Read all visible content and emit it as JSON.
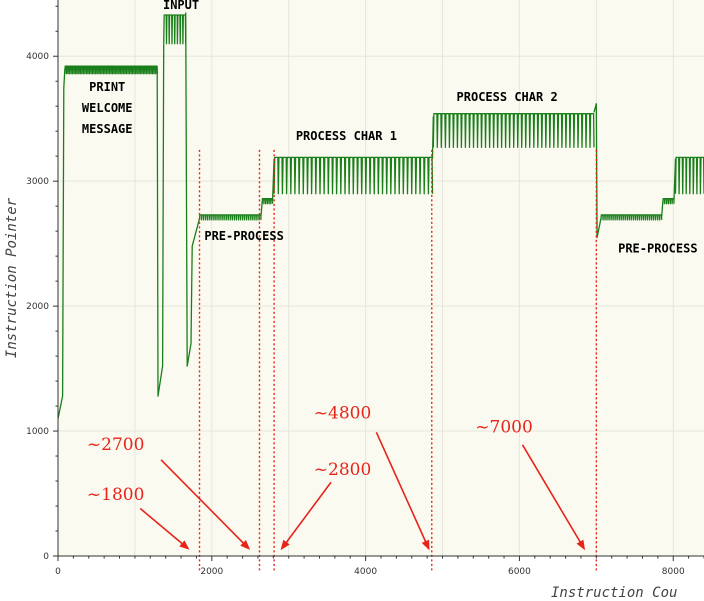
{
  "chart_data": {
    "type": "line",
    "xlabel": "Instruction Cou",
    "ylabel": "Instruction Pointer",
    "xlim": [
      0,
      8400
    ],
    "ylim": [
      0,
      4450
    ],
    "xticks": [
      0,
      2000,
      4000,
      6000,
      8000
    ],
    "yticks": [
      0,
      1000,
      2000,
      3000,
      4000
    ],
    "grid": true,
    "series_color": "#1a7f1a",
    "background": "#fafaf0",
    "gridline_color": "#e6e6dc",
    "segments": [
      {
        "kind": "plain",
        "points": [
          [
            0,
            1100
          ],
          [
            60,
            1280
          ],
          [
            75,
            3750
          ],
          [
            90,
            3900
          ]
        ]
      },
      {
        "kind": "band",
        "x_start": 90,
        "x_end": 1290,
        "low": 3860,
        "high": 3920,
        "teeth": 60
      },
      {
        "kind": "plain",
        "points": [
          [
            1290,
            3900
          ],
          [
            1300,
            1280
          ],
          [
            1360,
            1520
          ],
          [
            1375,
            4100
          ]
        ]
      },
      {
        "kind": "band",
        "x_start": 1375,
        "x_end": 1660,
        "low": 4100,
        "high": 4330,
        "teeth": 8
      },
      {
        "kind": "plain",
        "points": [
          [
            1660,
            4350
          ],
          [
            1680,
            1520
          ],
          [
            1730,
            1700
          ],
          [
            1745,
            2480
          ],
          [
            1840,
            2700
          ]
        ]
      },
      {
        "kind": "band",
        "x_start": 1840,
        "x_end": 2640,
        "low": 2690,
        "high": 2730,
        "teeth": 30
      },
      {
        "kind": "plain",
        "points": [
          [
            2640,
            2720
          ],
          [
            2655,
            2840
          ]
        ]
      },
      {
        "kind": "band",
        "x_start": 2655,
        "x_end": 2790,
        "low": 2820,
        "high": 2860,
        "teeth": 6
      },
      {
        "kind": "plain",
        "points": [
          [
            2790,
            2850
          ],
          [
            2810,
            3180
          ]
        ]
      },
      {
        "kind": "band",
        "x_start": 2810,
        "x_end": 4870,
        "low": 2900,
        "high": 3190,
        "teeth": 38
      },
      {
        "kind": "plain",
        "points": [
          [
            4870,
            3180
          ],
          [
            4880,
            3520
          ]
        ]
      },
      {
        "kind": "band",
        "x_start": 4880,
        "x_end": 6970,
        "low": 3270,
        "high": 3540,
        "teeth": 40
      },
      {
        "kind": "plain",
        "points": [
          [
            6970,
            3550
          ],
          [
            7000,
            3620
          ],
          [
            7010,
            2550
          ],
          [
            7060,
            2700
          ]
        ]
      },
      {
        "kind": "band",
        "x_start": 7060,
        "x_end": 7850,
        "low": 2690,
        "high": 2730,
        "teeth": 30
      },
      {
        "kind": "plain",
        "points": [
          [
            7850,
            2720
          ],
          [
            7865,
            2840
          ]
        ]
      },
      {
        "kind": "band",
        "x_start": 7865,
        "x_end": 8010,
        "low": 2820,
        "high": 2860,
        "teeth": 6
      },
      {
        "kind": "plain",
        "points": [
          [
            8010,
            2850
          ],
          [
            8030,
            3180
          ]
        ]
      },
      {
        "kind": "band",
        "x_start": 8030,
        "x_end": 8400,
        "low": 2900,
        "high": 3190,
        "teeth": 8
      }
    ],
    "vlines": [
      {
        "x": 1840,
        "y_top": 3250
      },
      {
        "x": 2620,
        "y_top": 3250
      },
      {
        "x": 2810,
        "y_top": 3250
      },
      {
        "x": 4860,
        "y_top": 3250
      },
      {
        "x": 7000,
        "y_top": 3250
      }
    ],
    "vline_color": "#e8231a",
    "phase_labels": [
      {
        "lines": [
          "INPUT"
        ],
        "x": 1600,
        "y": 4380
      },
      {
        "lines": [
          "PRINT",
          "WELCOME",
          "MESSAGE"
        ],
        "x": 640,
        "y": 3720
      },
      {
        "lines": [
          "PRE-PROCESS"
        ],
        "x": 2420,
        "y": 2530
      },
      {
        "lines": [
          "PROCESS CHAR 1"
        ],
        "x": 3750,
        "y": 3330
      },
      {
        "lines": [
          "PROCESS CHAR 2"
        ],
        "x": 5840,
        "y": 3640
      },
      {
        "lines": [
          "PRE-PROCESS"
        ],
        "x": 7800,
        "y": 2430
      }
    ],
    "annotations": [
      {
        "text": "~2700",
        "x": 750,
        "y": 850,
        "arrow_from": [
          1340,
          770
        ],
        "arrow_to": [
          2480,
          60
        ]
      },
      {
        "text": "~1800",
        "x": 750,
        "y": 450,
        "arrow_from": [
          1070,
          380
        ],
        "arrow_to": [
          1690,
          60
        ]
      },
      {
        "text": "~4800",
        "x": 3700,
        "y": 1100,
        "arrow_from": [
          4140,
          990
        ],
        "arrow_to": [
          4820,
          60
        ]
      },
      {
        "text": "~2800",
        "x": 3700,
        "y": 650,
        "arrow_from": [
          3550,
          590
        ],
        "arrow_to": [
          2910,
          60
        ]
      },
      {
        "text": "~7000",
        "x": 5800,
        "y": 990,
        "arrow_from": [
          6040,
          890
        ],
        "arrow_to": [
          6840,
          60
        ]
      }
    ]
  }
}
